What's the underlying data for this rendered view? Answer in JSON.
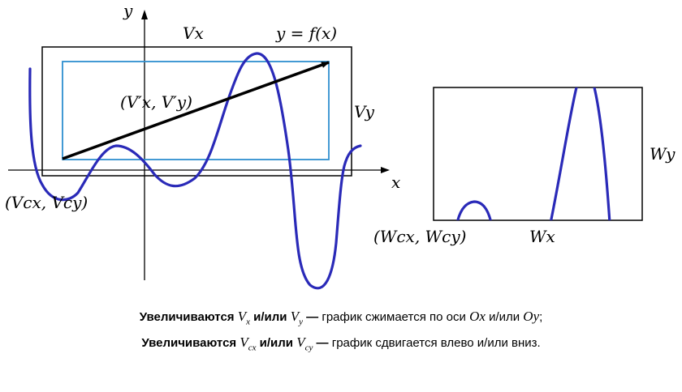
{
  "left_figure": {
    "axis_x_label": "x",
    "axis_y_label": "y",
    "viewport_width_label": "Vx",
    "function_label": "y = f(x)",
    "viewport_height_label": "Vy",
    "vector_label": "(V′x, V′y)",
    "corner_label": "(Vcx, Vcy)"
  },
  "right_figure": {
    "window_height_label": "Wy",
    "window_width_label": "Wx",
    "corner_label": "(Wcx, Wcy)"
  },
  "colors": {
    "curve": "#2a2ab8",
    "inner_rect": "#2f8fcf",
    "frame": "#000000"
  },
  "caption": {
    "line1": {
      "lead": "Увеличиваются",
      "var1": "V",
      "sub1": "x",
      "conj": "и/или",
      "var2": "V",
      "sub2": "y",
      "dash": "—",
      "text1": "график сжимается по оси",
      "axis1": "Ox",
      "text2": "и/или",
      "axis2": "Oy",
      "end": ";"
    },
    "line2": {
      "lead": "Увеличиваются",
      "var1": "V",
      "sub1": "cx",
      "conj": "и/или",
      "var2": "V",
      "sub2": "cy",
      "dash": "—",
      "text1": "график сдвигается влево и/или вниз."
    }
  }
}
